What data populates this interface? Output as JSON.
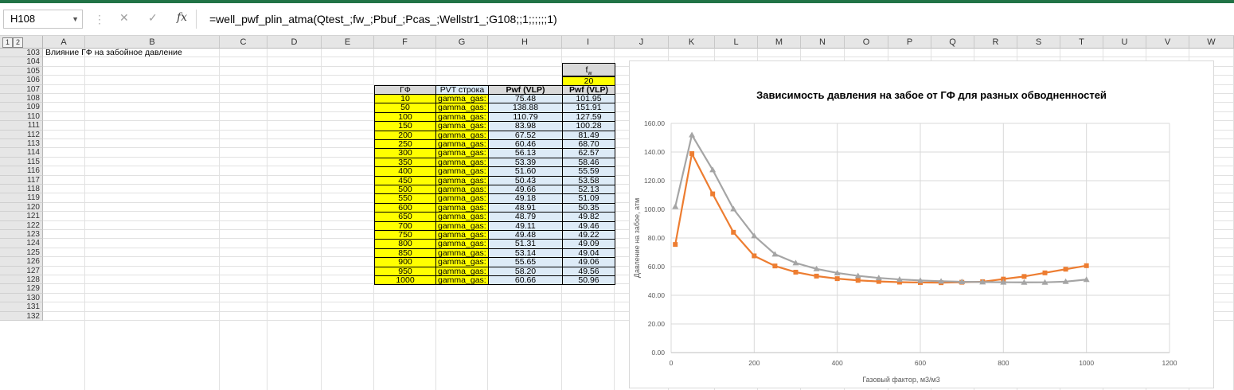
{
  "formula_bar": {
    "name_box": "H108",
    "cancel_glyph": "✕",
    "enter_glyph": "✓",
    "fx_glyph": "fx",
    "formula": "=well_pwf_plin_atma(Qtest_;fw_;Pbuf_;Pcas_;Wellstr1_;G108;;1;;;;;;1)"
  },
  "outline_levels": [
    "1",
    "2"
  ],
  "columns": [
    "A",
    "B",
    "C",
    "D",
    "E",
    "F",
    "G",
    "H",
    "I",
    "J",
    "K",
    "L",
    "M",
    "N",
    "O",
    "P",
    "Q",
    "R",
    "S",
    "T",
    "U",
    "V",
    "W"
  ],
  "rows": [
    "103",
    "104",
    "105",
    "106",
    "107",
    "108",
    "109",
    "110",
    "111",
    "112",
    "113",
    "114",
    "115",
    "116",
    "117",
    "118",
    "119",
    "120",
    "121",
    "122",
    "123",
    "124",
    "125",
    "126",
    "127",
    "128",
    "129",
    "130",
    "131",
    "132"
  ],
  "sheet": {
    "title_cell": "Влияние ГФ на забойное давление",
    "fw_label": "f",
    "fw_sub": "w",
    "fw_value": "20",
    "headers": {
      "gf": "ГФ",
      "pvt": "PVT строка",
      "pwf1": "Pwf (VLP)",
      "pwf2": "Pwf (VLP)"
    },
    "table": [
      {
        "gf": "10",
        "pvt": "gamma_gas:",
        "pwf1": "75.48",
        "pwf2": "101.95"
      },
      {
        "gf": "50",
        "pvt": "gamma_gas:",
        "pwf1": "138.88",
        "pwf2": "151.91"
      },
      {
        "gf": "100",
        "pvt": "gamma_gas:",
        "pwf1": "110.79",
        "pwf2": "127.59"
      },
      {
        "gf": "150",
        "pvt": "gamma_gas:",
        "pwf1": "83.98",
        "pwf2": "100.28"
      },
      {
        "gf": "200",
        "pvt": "gamma_gas:",
        "pwf1": "67.52",
        "pwf2": "81.49"
      },
      {
        "gf": "250",
        "pvt": "gamma_gas:",
        "pwf1": "60.46",
        "pwf2": "68.70"
      },
      {
        "gf": "300",
        "pvt": "gamma_gas:",
        "pwf1": "56.13",
        "pwf2": "62.57"
      },
      {
        "gf": "350",
        "pvt": "gamma_gas:",
        "pwf1": "53.39",
        "pwf2": "58.46"
      },
      {
        "gf": "400",
        "pvt": "gamma_gas:",
        "pwf1": "51.60",
        "pwf2": "55.59"
      },
      {
        "gf": "450",
        "pvt": "gamma_gas:",
        "pwf1": "50.43",
        "pwf2": "53.58"
      },
      {
        "gf": "500",
        "pvt": "gamma_gas:",
        "pwf1": "49.66",
        "pwf2": "52.13"
      },
      {
        "gf": "550",
        "pvt": "gamma_gas:",
        "pwf1": "49.18",
        "pwf2": "51.09"
      },
      {
        "gf": "600",
        "pvt": "gamma_gas:",
        "pwf1": "48.91",
        "pwf2": "50.35"
      },
      {
        "gf": "650",
        "pvt": "gamma_gas:",
        "pwf1": "48.79",
        "pwf2": "49.82"
      },
      {
        "gf": "700",
        "pvt": "gamma_gas:",
        "pwf1": "49.11",
        "pwf2": "49.46"
      },
      {
        "gf": "750",
        "pvt": "gamma_gas:",
        "pwf1": "49.48",
        "pwf2": "49.22"
      },
      {
        "gf": "800",
        "pvt": "gamma_gas:",
        "pwf1": "51.31",
        "pwf2": "49.09"
      },
      {
        "gf": "850",
        "pvt": "gamma_gas:",
        "pwf1": "53.14",
        "pwf2": "49.04"
      },
      {
        "gf": "900",
        "pvt": "gamma_gas:",
        "pwf1": "55.65",
        "pwf2": "49.06"
      },
      {
        "gf": "950",
        "pvt": "gamma_gas:",
        "pwf1": "58.20",
        "pwf2": "49.56"
      },
      {
        "gf": "1000",
        "pvt": "gamma_gas:",
        "pwf1": "60.66",
        "pwf2": "50.96"
      }
    ]
  },
  "chart_data": {
    "type": "scatter",
    "title": "Зависимость давления на забое от ГФ для разных обводненностей",
    "xlabel": "Газовый фактор, м3/м3",
    "ylabel": "Давление на забое, атм",
    "xlim": [
      0,
      1200
    ],
    "ylim": [
      0,
      160
    ],
    "xticks": [
      "0",
      "200",
      "400",
      "600",
      "800",
      "1000",
      "1200"
    ],
    "yticks": [
      "0.00",
      "20.00",
      "40.00",
      "60.00",
      "80.00",
      "100.00",
      "120.00",
      "140.00",
      "160.00"
    ],
    "grid": true,
    "x": [
      10,
      50,
      100,
      150,
      200,
      250,
      300,
      350,
      400,
      450,
      500,
      550,
      600,
      650,
      700,
      750,
      800,
      850,
      900,
      950,
      1000
    ],
    "series": [
      {
        "color": "#ed7d31",
        "marker": "square",
        "values": [
          75.48,
          138.88,
          110.79,
          83.98,
          67.52,
          60.46,
          56.13,
          53.39,
          51.6,
          50.43,
          49.66,
          49.18,
          48.91,
          48.79,
          49.11,
          49.48,
          51.31,
          53.14,
          55.65,
          58.2,
          60.66
        ]
      },
      {
        "color": "#a5a5a5",
        "marker": "triangle",
        "values": [
          101.95,
          151.91,
          127.59,
          100.28,
          81.49,
          68.7,
          62.57,
          58.46,
          55.59,
          53.58,
          52.13,
          51.09,
          50.35,
          49.82,
          49.46,
          49.22,
          49.09,
          49.04,
          49.06,
          49.56,
          50.96
        ]
      }
    ]
  }
}
